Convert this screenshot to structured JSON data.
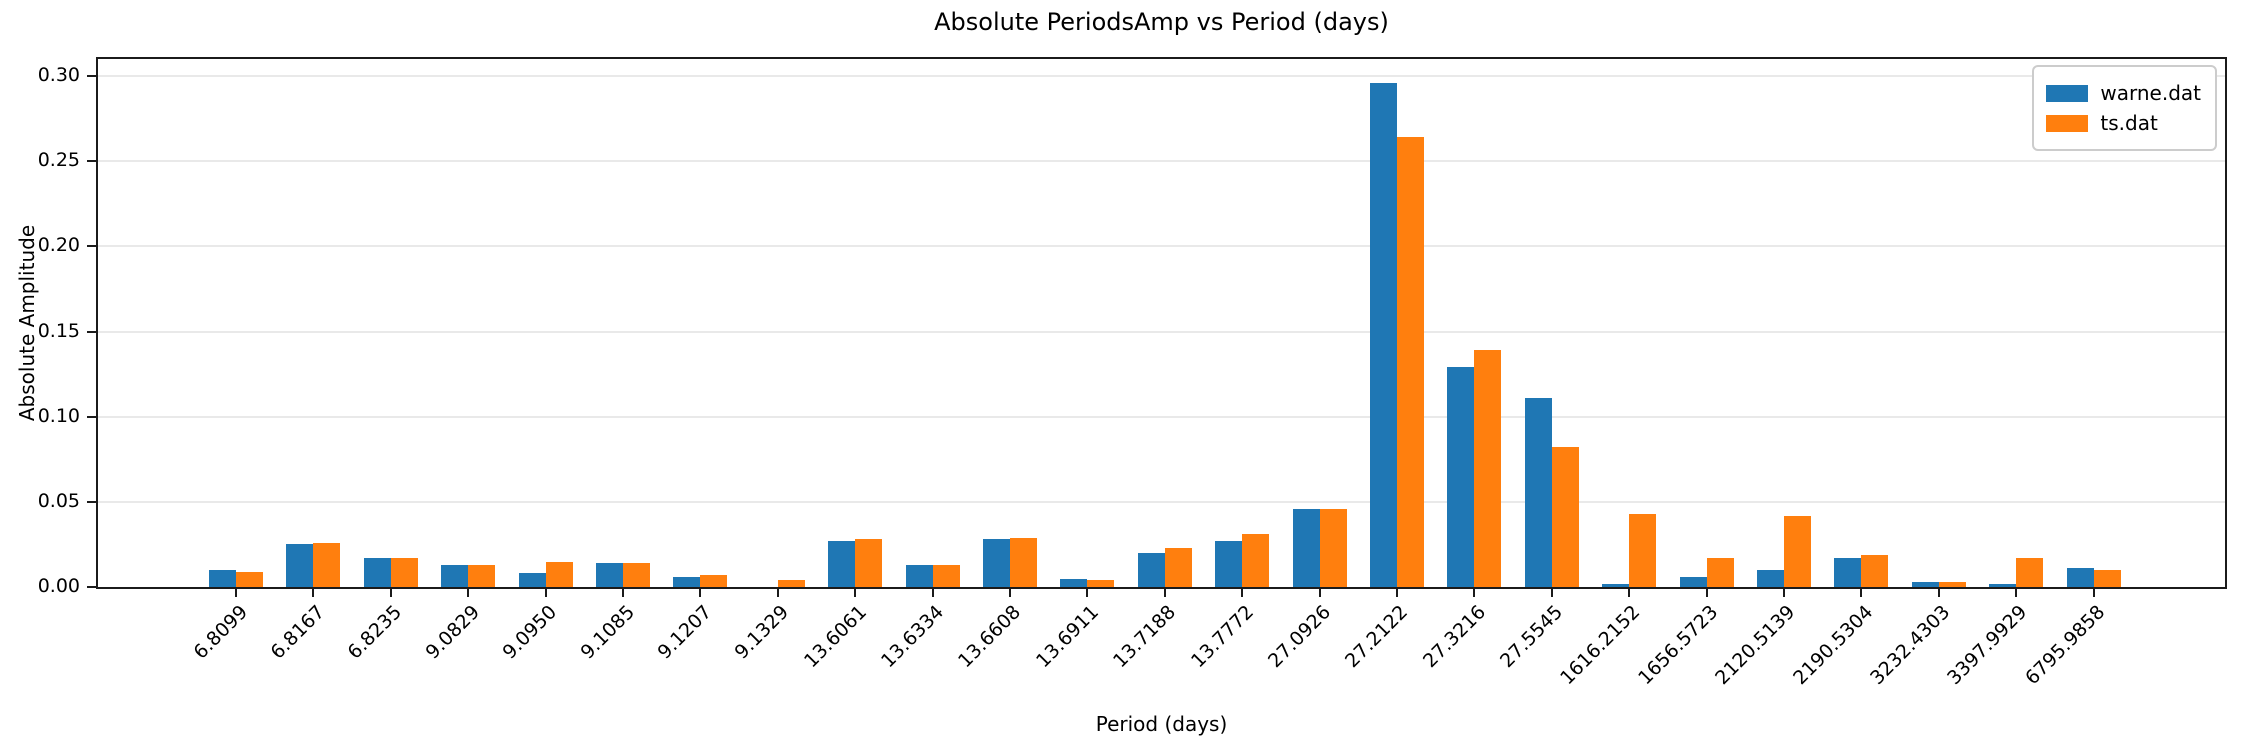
{
  "chart_data": {
    "type": "bar",
    "title": "Absolute PeriodsAmp vs Period (days)",
    "xlabel": "Period (days)",
    "ylabel": "Absolute Amplitude",
    "categories": [
      "6.8099",
      "6.8167",
      "6.8235",
      "9.0829",
      "9.0950",
      "9.1085",
      "9.1207",
      "9.1329",
      "13.6061",
      "13.6334",
      "13.6608",
      "13.6911",
      "13.7188",
      "13.7772",
      "27.0926",
      "27.2122",
      "27.3216",
      "27.5545",
      "1616.2152",
      "1656.5723",
      "2120.5139",
      "2190.5304",
      "3232.4303",
      "3397.9929",
      "6795.9858"
    ],
    "series": [
      {
        "name": "warne.dat",
        "color": "#1f77b4",
        "values": [
          0.01,
          0.025,
          0.017,
          0.013,
          0.008,
          0.014,
          0.006,
          0.0,
          0.027,
          0.013,
          0.028,
          0.005,
          0.02,
          0.027,
          0.046,
          0.296,
          0.129,
          0.111,
          0.002,
          0.006,
          0.01,
          0.017,
          0.003,
          0.002,
          0.011
        ]
      },
      {
        "name": "ts.dat",
        "color": "#ff7f0e",
        "values": [
          0.009,
          0.026,
          0.017,
          0.013,
          0.015,
          0.014,
          0.007,
          0.004,
          0.028,
          0.013,
          0.029,
          0.004,
          0.023,
          0.031,
          0.046,
          0.264,
          0.139,
          0.082,
          0.043,
          0.017,
          0.042,
          0.019,
          0.003,
          0.017,
          0.01
        ]
      }
    ],
    "ylim": [
      0,
      0.31
    ],
    "yticks": [
      0.0,
      0.05,
      0.1,
      0.15,
      0.2,
      0.25,
      0.3
    ],
    "ytick_labels": [
      "0.00",
      "0.05",
      "0.10",
      "0.15",
      "0.20",
      "0.25",
      "0.30"
    ],
    "grid": "horizontal-only",
    "gridline_color": "#e9e9e9",
    "legend_position": "upper-right",
    "tick_label_rotation_deg": 45
  }
}
